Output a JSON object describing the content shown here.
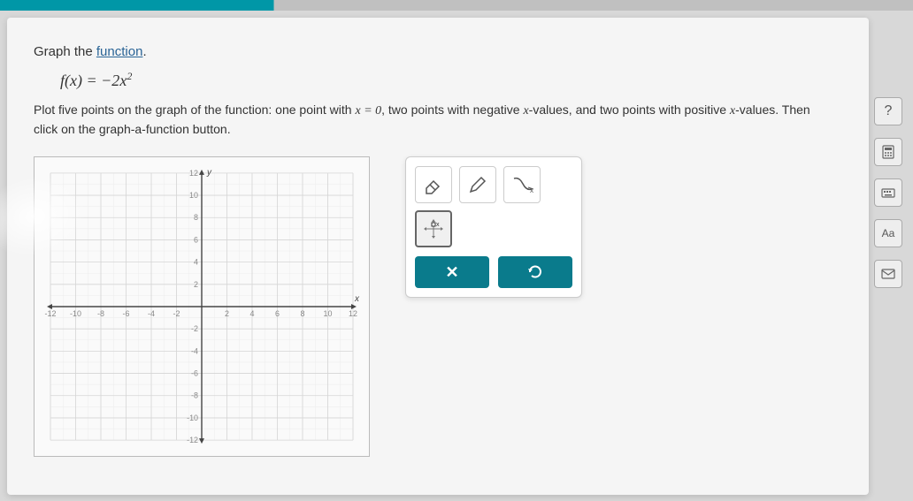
{
  "topbar": {
    "accent_color": "#0097a7"
  },
  "question": {
    "title_prefix": "Graph the ",
    "title_link": "function",
    "title_suffix": ".",
    "equation_html": "f(x) = −2x²",
    "instructions_p1": "Plot five points on the graph of the function: one point with ",
    "instructions_eq": "x = 0",
    "instructions_p2": ", two points with negative ",
    "instructions_var1": "x",
    "instructions_p3": "-values, and two points with positive ",
    "instructions_var2": "x",
    "instructions_p4": "-values. Then click on the graph-a-function button."
  },
  "graph": {
    "xmin": -12,
    "xmax": 12,
    "ymin": -12,
    "ymax": 12,
    "major_step": 2,
    "label_step": 2,
    "grid_color": "#d5d5d5",
    "minor_grid_color": "#ececec",
    "axis_color": "#444",
    "label_color": "#888",
    "label_fontsize": 9,
    "xlabel": "x",
    "ylabel": "y"
  },
  "tools": {
    "eraser": "eraser-icon",
    "pencil": "pencil-icon",
    "curve": "curve-icon",
    "point": "point-plot-icon"
  },
  "actions": {
    "clear_label": "✕",
    "reset_label": "↺"
  },
  "rail": {
    "help": "?",
    "calculator": "calc",
    "keyboard": "kbd",
    "font": "Aa",
    "mail": "mail"
  }
}
